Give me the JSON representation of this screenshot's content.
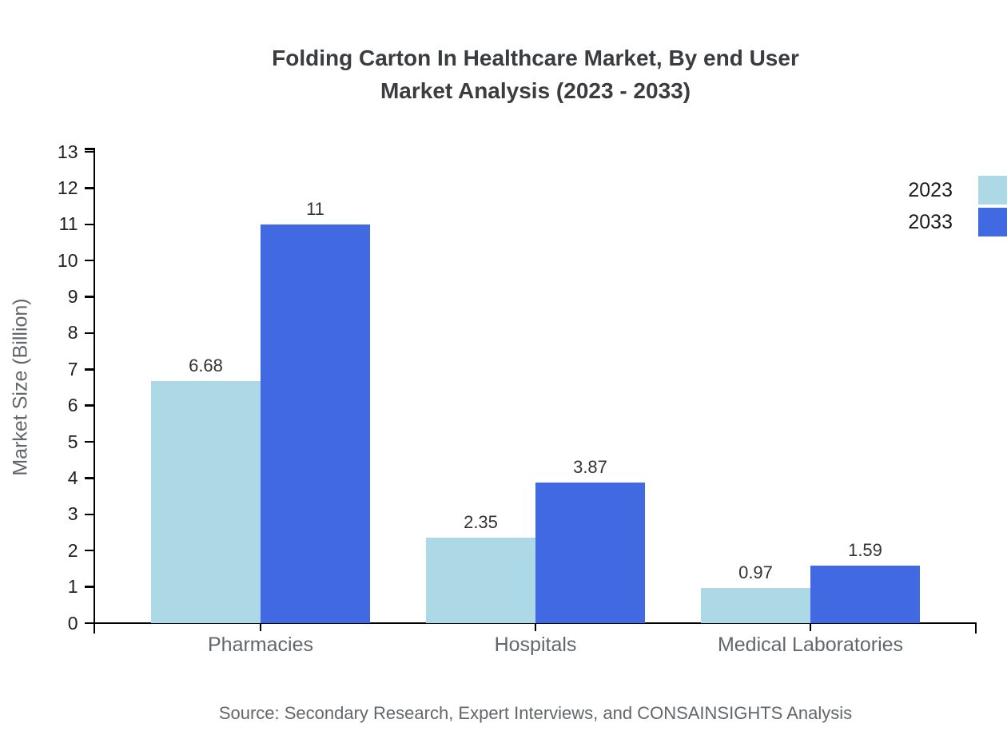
{
  "title": {
    "line1": "Folding Carton In Healthcare Market, By end User",
    "line2": "Market Analysis (2023 - 2033)"
  },
  "source_text": "Source: Secondary Research, Expert Interviews, and CONSAINSIGHTS Analysis",
  "chart_data": {
    "type": "bar",
    "title": "Folding Carton In Healthcare Market, By end User Market Analysis (2023 - 2033)",
    "categories": [
      "Pharmacies",
      "Hospitals",
      "Medical Laboratories"
    ],
    "series": [
      {
        "name": "2023",
        "color": "#add8e6",
        "values": [
          6.68,
          2.35,
          0.97
        ],
        "value_labels": [
          "6.68",
          "2.35",
          "0.97"
        ]
      },
      {
        "name": "2033",
        "color": "#4169e1",
        "values": [
          11,
          3.87,
          1.59
        ],
        "value_labels": [
          "11",
          "3.87",
          "1.59"
        ]
      }
    ],
    "xlabel": "",
    "ylabel": "Market Size (Billion)",
    "ylim": [
      0,
      13
    ],
    "yticks": [
      0,
      1,
      2,
      3,
      4,
      5,
      6,
      7,
      8,
      9,
      10,
      11,
      12,
      13
    ],
    "grid": false,
    "legend_position": "top-right",
    "bar_value_labels": true
  },
  "legend": {
    "items": [
      {
        "label": "2023",
        "color": "#add8e6"
      },
      {
        "label": "2033",
        "color": "#4169e1"
      }
    ]
  },
  "colors": {
    "axis": "#000000",
    "tick_label": "#1f1f1f",
    "category_label": "#63666b",
    "title": "#3a3c40",
    "muted_text": "#63666b"
  }
}
